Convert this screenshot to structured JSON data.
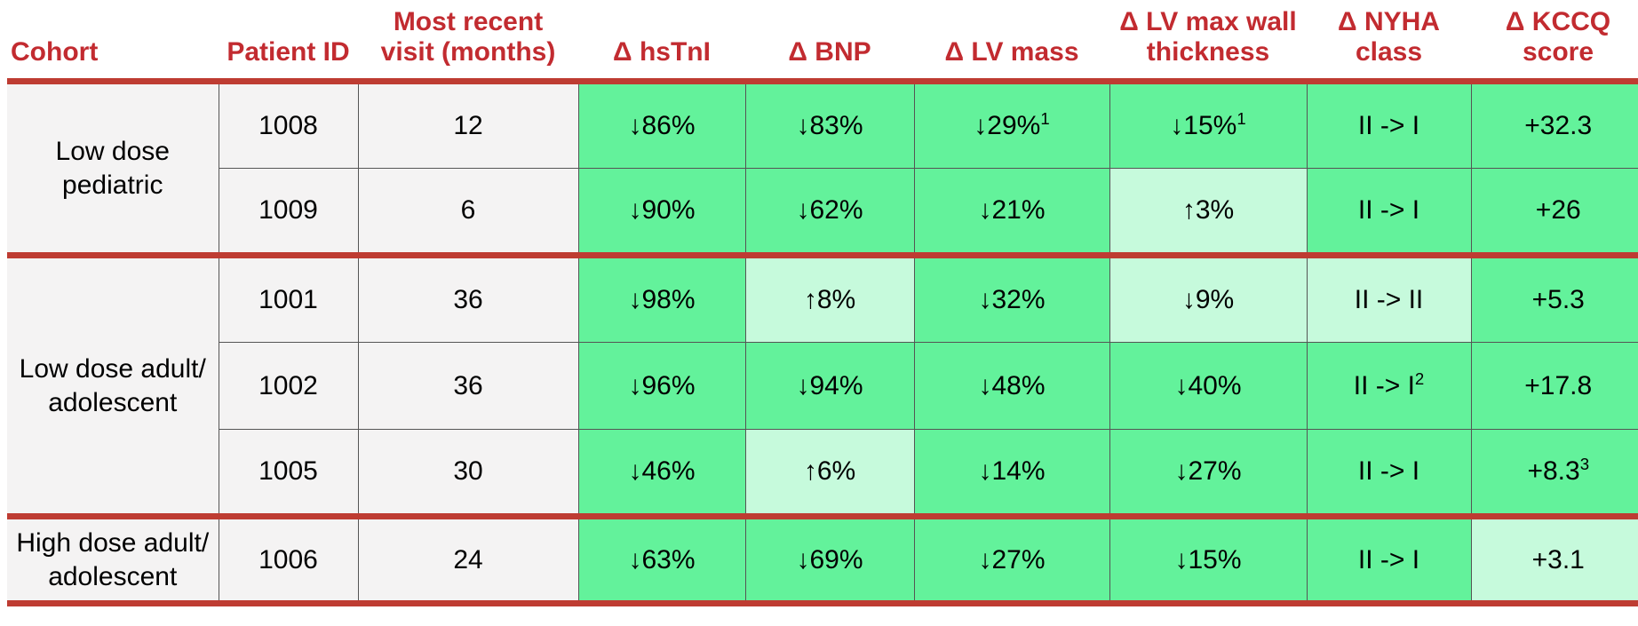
{
  "colors": {
    "divider_red": "#BE3C32",
    "header_text_red": "#C22B30",
    "highlight_green": "#63F29B",
    "highlight_pale_green": "#C6FADC",
    "plain_cell_bg": "#F4F3F3",
    "grid_line_gray": "#555555",
    "body_text": "#000000"
  },
  "table": {
    "columns": [
      "Cohort",
      "Patient ID",
      "Most recent visit (months)",
      "Δ hsTnI",
      "Δ BNP",
      "Δ LV mass",
      "Δ LV max wall thickness",
      "Δ NYHA class",
      "Δ KCCQ score"
    ],
    "cohorts": [
      {
        "name": "Low dose pediatric",
        "rows": [
          {
            "patient_id": "1008",
            "visit_months": "12",
            "metrics": [
              {
                "text": "↓86%",
                "sup": "",
                "tone": "green"
              },
              {
                "text": "↓83%",
                "sup": "",
                "tone": "green"
              },
              {
                "text": "↓29%",
                "sup": "1",
                "tone": "green"
              },
              {
                "text": "↓15%",
                "sup": "1",
                "tone": "green"
              },
              {
                "text": "II -> I",
                "sup": "",
                "tone": "green"
              },
              {
                "text": "+32.3",
                "sup": "",
                "tone": "green"
              }
            ]
          },
          {
            "patient_id": "1009",
            "visit_months": "6",
            "metrics": [
              {
                "text": "↓90%",
                "sup": "",
                "tone": "green"
              },
              {
                "text": "↓62%",
                "sup": "",
                "tone": "green"
              },
              {
                "text": "↓21%",
                "sup": "",
                "tone": "green"
              },
              {
                "text": "↑3%",
                "sup": "",
                "tone": "pale"
              },
              {
                "text": "II -> I",
                "sup": "",
                "tone": "green"
              },
              {
                "text": "+26",
                "sup": "",
                "tone": "green"
              }
            ]
          }
        ]
      },
      {
        "name": "Low dose adult/\nadolescent",
        "rows": [
          {
            "patient_id": "1001",
            "visit_months": "36",
            "metrics": [
              {
                "text": "↓98%",
                "sup": "",
                "tone": "green"
              },
              {
                "text": "↑8%",
                "sup": "",
                "tone": "pale"
              },
              {
                "text": "↓32%",
                "sup": "",
                "tone": "green"
              },
              {
                "text": "↓9%",
                "sup": "",
                "tone": "pale"
              },
              {
                "text": "II -> II",
                "sup": "",
                "tone": "pale"
              },
              {
                "text": "+5.3",
                "sup": "",
                "tone": "green"
              }
            ]
          },
          {
            "patient_id": "1002",
            "visit_months": "36",
            "metrics": [
              {
                "text": "↓96%",
                "sup": "",
                "tone": "green"
              },
              {
                "text": "↓94%",
                "sup": "",
                "tone": "green"
              },
              {
                "text": "↓48%",
                "sup": "",
                "tone": "green"
              },
              {
                "text": "↓40%",
                "sup": "",
                "tone": "green"
              },
              {
                "text": "II -> I",
                "sup": "2",
                "tone": "green"
              },
              {
                "text": "+17.8",
                "sup": "",
                "tone": "green"
              }
            ]
          },
          {
            "patient_id": "1005",
            "visit_months": "30",
            "metrics": [
              {
                "text": "↓46%",
                "sup": "",
                "tone": "green"
              },
              {
                "text": "↑6%",
                "sup": "",
                "tone": "pale"
              },
              {
                "text": "↓14%",
                "sup": "",
                "tone": "green"
              },
              {
                "text": "↓27%",
                "sup": "",
                "tone": "green"
              },
              {
                "text": "II -> I",
                "sup": "",
                "tone": "green"
              },
              {
                "text": "+8.3",
                "sup": "3",
                "tone": "green"
              }
            ]
          }
        ]
      },
      {
        "name": "High dose adult/\nadolescent",
        "rows": [
          {
            "patient_id": "1006",
            "visit_months": "24",
            "metrics": [
              {
                "text": "↓63%",
                "sup": "",
                "tone": "green"
              },
              {
                "text": "↓69%",
                "sup": "",
                "tone": "green"
              },
              {
                "text": "↓27%",
                "sup": "",
                "tone": "green"
              },
              {
                "text": "↓15%",
                "sup": "",
                "tone": "green"
              },
              {
                "text": "II -> I",
                "sup": "",
                "tone": "green"
              },
              {
                "text": "+3.1",
                "sup": "",
                "tone": "pale"
              }
            ]
          }
        ]
      }
    ]
  },
  "chart_data": {
    "type": "table",
    "title": "",
    "columns": [
      "Cohort",
      "Patient ID",
      "Most recent visit (months)",
      "Δ hsTnI",
      "Δ BNP",
      "Δ LV mass",
      "Δ LV max wall thickness",
      "Δ NYHA class",
      "Δ KCCQ score"
    ],
    "rows": [
      [
        "Low dose pediatric",
        "1008",
        "12",
        "↓86%",
        "↓83%",
        "↓29%¹",
        "↓15%¹",
        "II -> I",
        "+32.3"
      ],
      [
        "Low dose pediatric",
        "1009",
        "6",
        "↓90%",
        "↓62%",
        "↓21%",
        "↑3%",
        "II -> I",
        "+26"
      ],
      [
        "Low dose adult/ adolescent",
        "1001",
        "36",
        "↓98%",
        "↑8%",
        "↓32%",
        "↓9%",
        "II -> II",
        "+5.3"
      ],
      [
        "Low dose adult/ adolescent",
        "1002",
        "36",
        "↓96%",
        "↓94%",
        "↓48%",
        "↓40%",
        "II -> I²",
        "+17.8"
      ],
      [
        "Low dose adult/ adolescent",
        "1005",
        "30",
        "↓46%",
        "↑6%",
        "↓14%",
        "↓27%",
        "II -> I",
        "+8.3³"
      ],
      [
        "High dose adult/ adolescent",
        "1006",
        "24",
        "↓63%",
        "↓69%",
        "↓27%",
        "↓15%",
        "II -> I",
        "+3.1"
      ]
    ],
    "layout_hints": {
      "grouped_by_cohort": true,
      "highlight": "green = improvement, pale green = lesser/neutral change",
      "pale_green_cells": [
        {
          "patient_id": "1009",
          "column": "Δ LV max wall thickness"
        },
        {
          "patient_id": "1001",
          "column": "Δ BNP"
        },
        {
          "patient_id": "1001",
          "column": "Δ LV max wall thickness"
        },
        {
          "patient_id": "1001",
          "column": "Δ NYHA class"
        },
        {
          "patient_id": "1005",
          "column": "Δ BNP"
        },
        {
          "patient_id": "1006",
          "column": "Δ KCCQ score"
        }
      ]
    }
  }
}
